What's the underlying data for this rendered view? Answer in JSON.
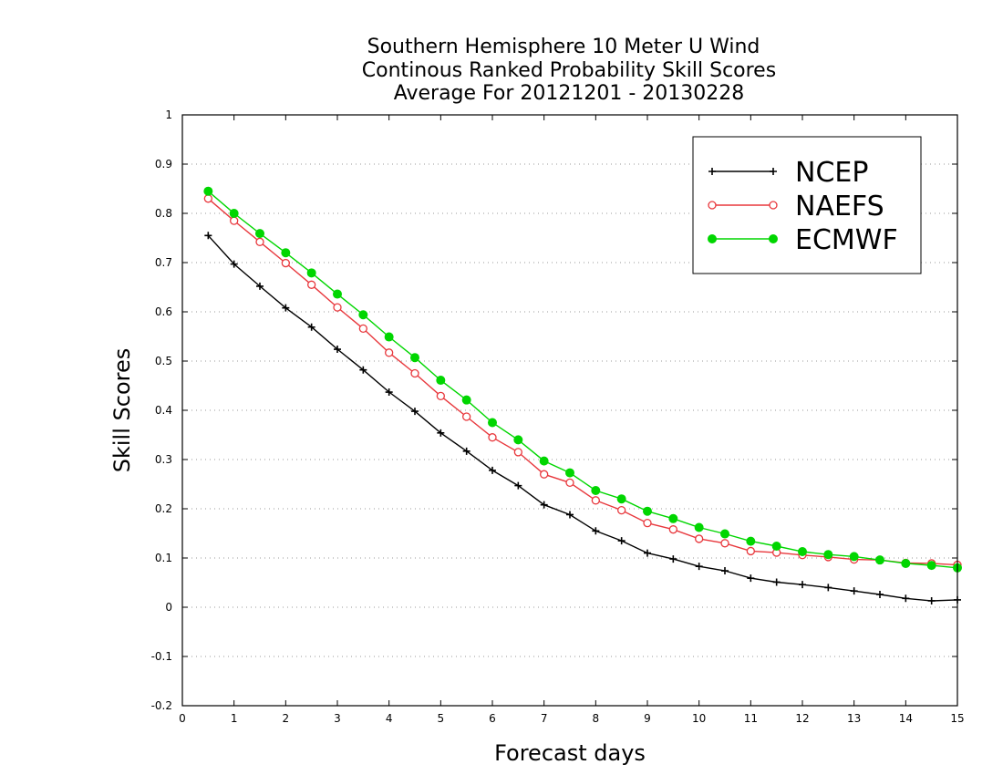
{
  "chart_data": {
    "type": "line",
    "title": [
      "Southern Hemisphere 10 Meter U Wind",
      "Continous Ranked Probability Skill Scores",
      "Average For 20121201 - 20130228"
    ],
    "xlabel": "Forecast days",
    "ylabel": "Skill Scores",
    "xlim": [
      0,
      15
    ],
    "ylim": [
      -0.2,
      1
    ],
    "xticks": [
      0,
      1,
      2,
      3,
      4,
      5,
      6,
      7,
      8,
      9,
      10,
      11,
      12,
      13,
      14,
      15
    ],
    "yticks": [
      -0.2,
      -0.1,
      0,
      0.1,
      0.2,
      0.3,
      0.4,
      0.5,
      0.6,
      0.7,
      0.8,
      0.9,
      1
    ],
    "ytick_labels": [
      "-0.2",
      "-0.1",
      "0",
      "0.1",
      "0.2",
      "0.3",
      "0.4",
      "0.5",
      "0.6",
      "0.7",
      "0.8",
      "0.9",
      "1"
    ],
    "grid": "horizontal dotted",
    "legend_position": "top-right",
    "x": [
      0.5,
      1,
      1.5,
      2,
      2.5,
      3,
      3.5,
      4,
      4.5,
      5,
      5.5,
      6,
      6.5,
      7,
      7.5,
      8,
      8.5,
      9,
      9.5,
      10,
      10.5,
      11,
      11.5,
      12,
      12.5,
      13,
      13.5,
      14,
      14.5,
      15
    ],
    "series": [
      {
        "name": "NCEP",
        "color": "#000000",
        "marker": "plus",
        "values": [
          0.755,
          0.697,
          0.652,
          0.608,
          0.569,
          0.524,
          0.482,
          0.437,
          0.398,
          0.354,
          0.317,
          0.278,
          0.247,
          0.208,
          0.188,
          0.155,
          0.135,
          0.11,
          0.098,
          0.083,
          0.074,
          0.059,
          0.051,
          0.046,
          0.04,
          0.033,
          0.026,
          0.018,
          0.013,
          0.015
        ]
      },
      {
        "name": "NAEFS",
        "color": "#e8383d",
        "marker": "open-circle",
        "values": [
          0.83,
          0.785,
          0.742,
          0.699,
          0.655,
          0.609,
          0.566,
          0.517,
          0.475,
          0.429,
          0.387,
          0.345,
          0.315,
          0.27,
          0.253,
          0.217,
          0.197,
          0.171,
          0.158,
          0.139,
          0.13,
          0.114,
          0.111,
          0.106,
          0.102,
          0.097,
          0.096,
          0.09,
          0.089,
          0.086
        ]
      },
      {
        "name": "ECMWF",
        "color": "#00d600",
        "marker": "filled-circle",
        "values": [
          0.845,
          0.8,
          0.759,
          0.72,
          0.679,
          0.636,
          0.594,
          0.549,
          0.507,
          0.461,
          0.421,
          0.375,
          0.34,
          0.297,
          0.273,
          0.237,
          0.22,
          0.195,
          0.18,
          0.162,
          0.149,
          0.134,
          0.124,
          0.113,
          0.107,
          0.103,
          0.096,
          0.089,
          0.085,
          0.08
        ]
      }
    ]
  }
}
